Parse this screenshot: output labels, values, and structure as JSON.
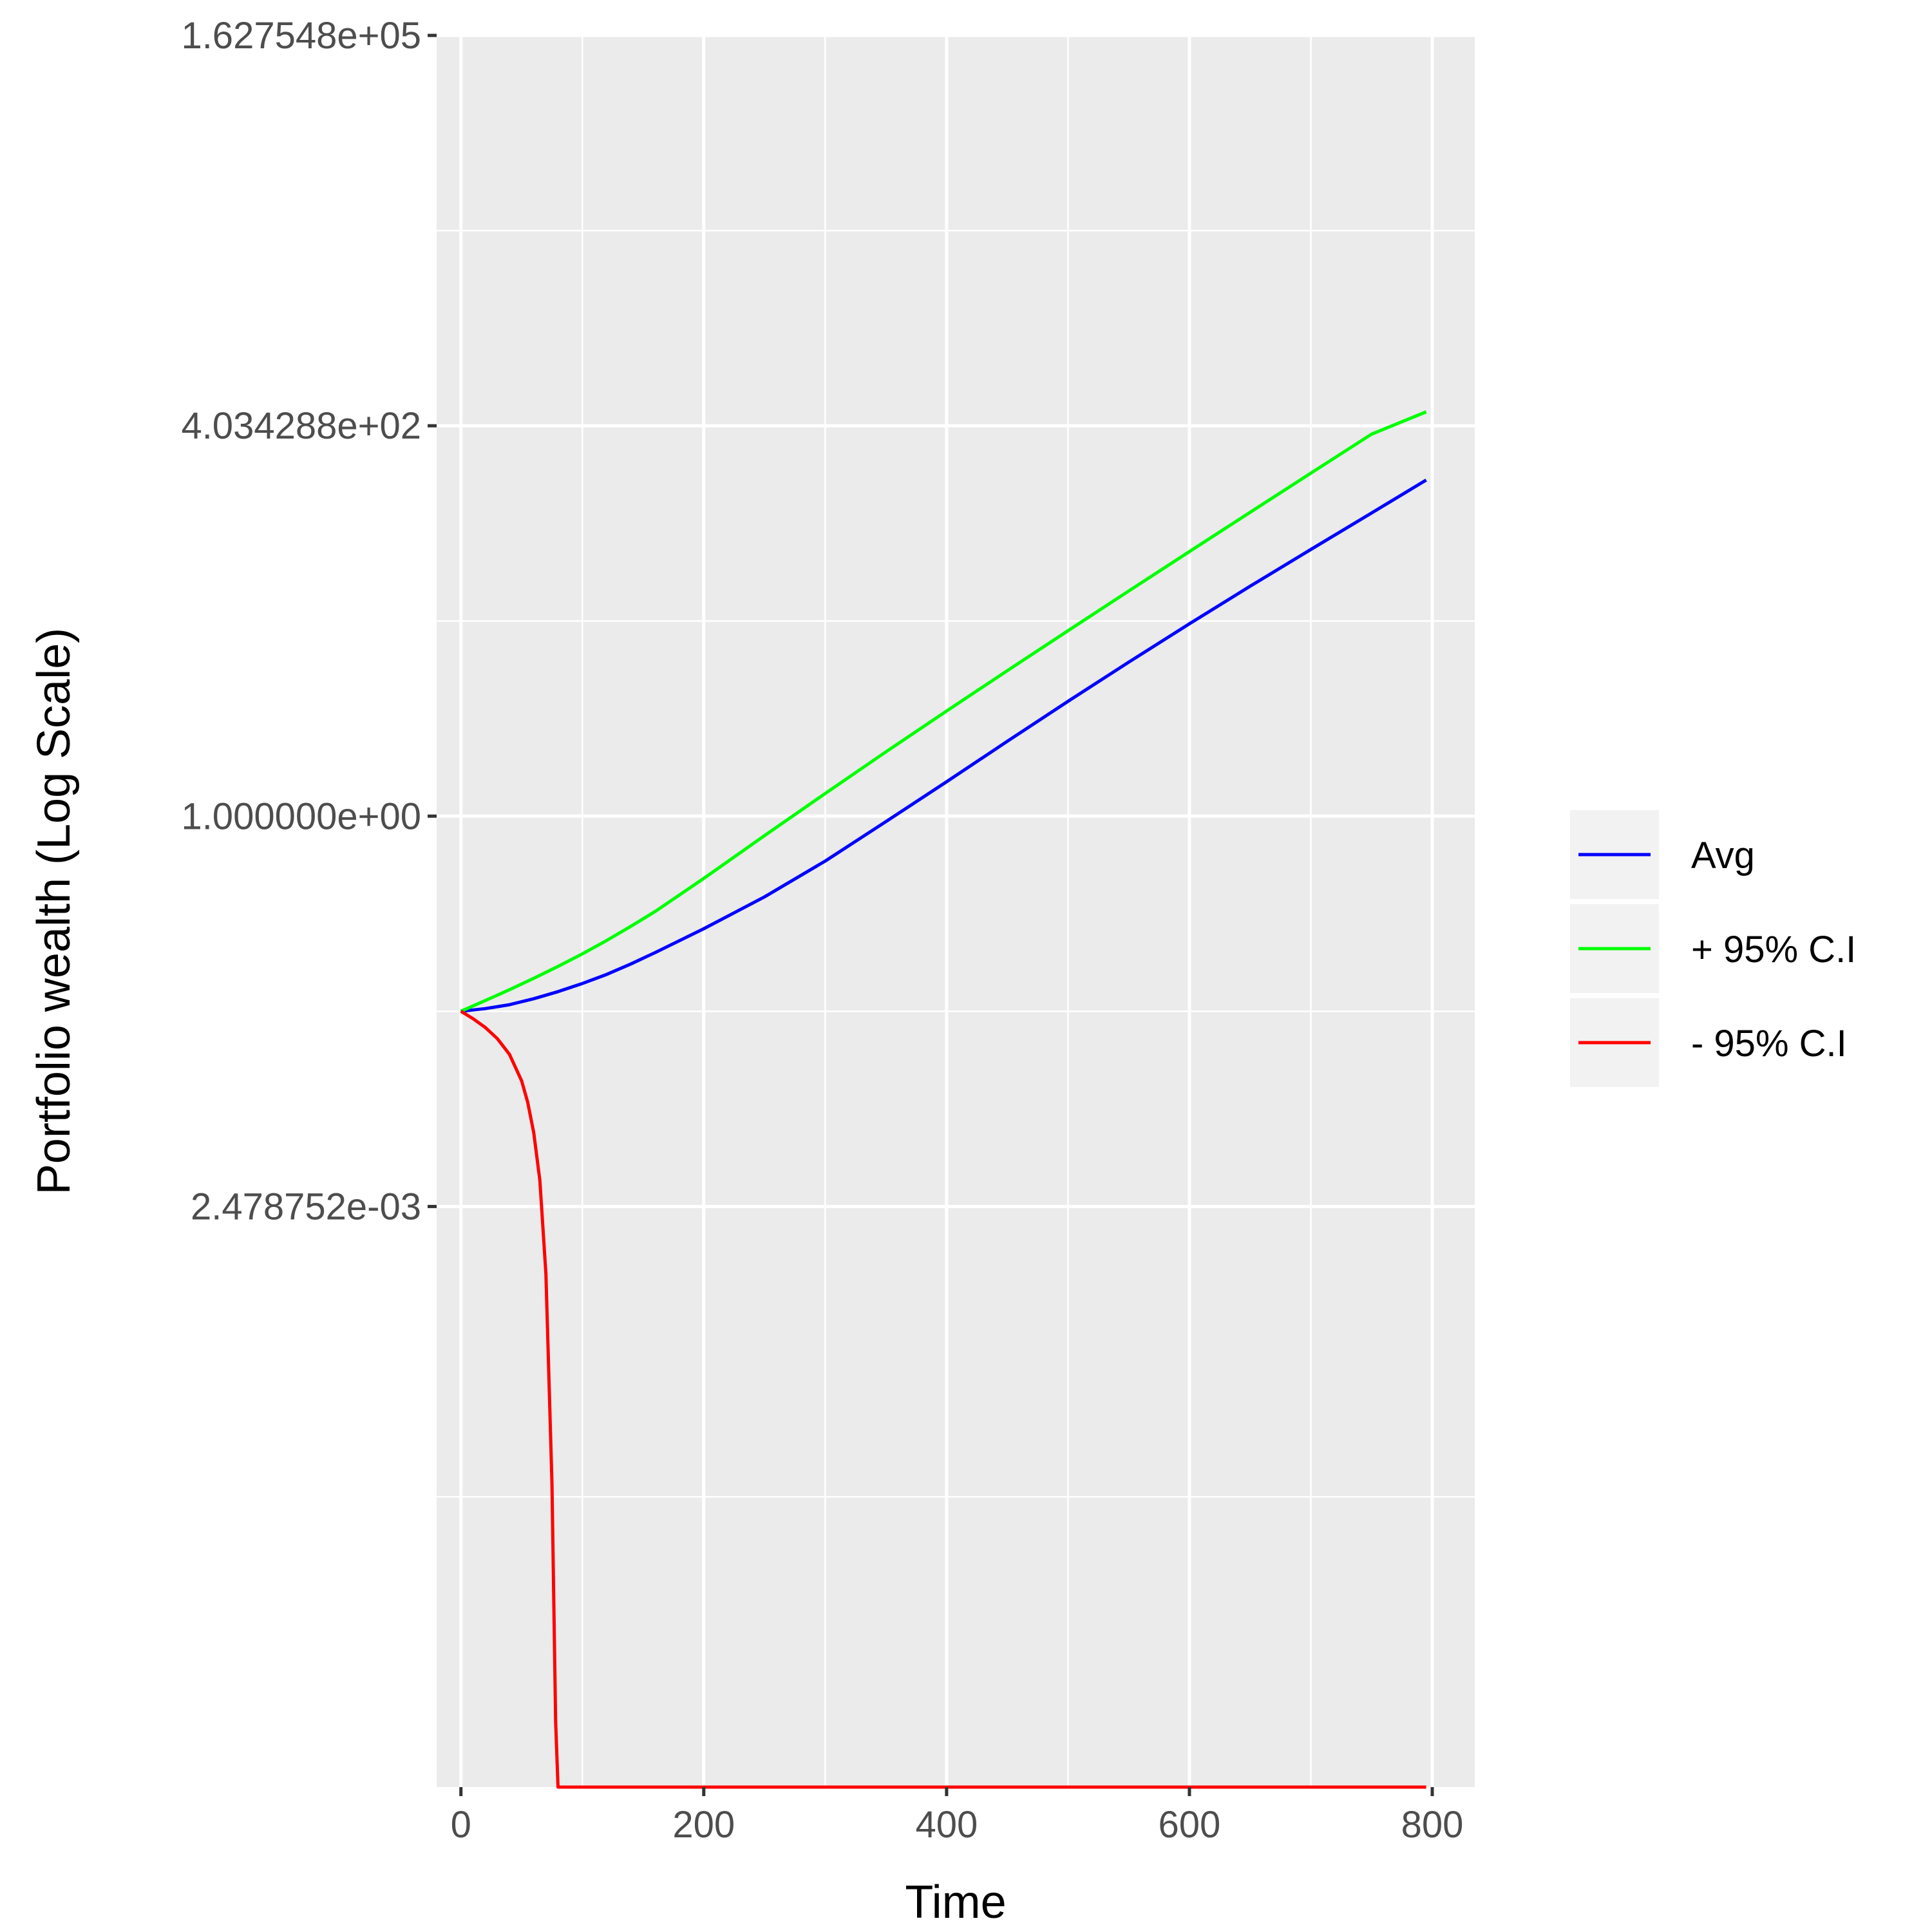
{
  "chart_data": {
    "type": "line",
    "title": "",
    "xlabel": "Time",
    "ylabel": "Portfolio wealth (Log Scale)",
    "y_scale": "log",
    "grid": true,
    "legend_position": "right",
    "xlim": [
      -20,
      835
    ],
    "ylim": [
      3.3e-07,
      162754.79
    ],
    "x_ticks": [
      0,
      200,
      400,
      600,
      800
    ],
    "x_tick_labels": [
      "0",
      "200",
      "400",
      "600",
      "800"
    ],
    "y_ticks": [
      0.002478752,
      1.0,
      403.4288,
      162754.8
    ],
    "y_tick_labels": [
      "2.478752e-03",
      "1.000000e+00",
      "4.034288e+02",
      "1.627548e+05"
    ],
    "series": [
      {
        "name": "Avg",
        "color": "#0000ff",
        "x": [
          0,
          20,
          40,
          60,
          80,
          100,
          120,
          140,
          160,
          200,
          250,
          300,
          350,
          400,
          450,
          500,
          550,
          600,
          650,
          700,
          750,
          795
        ],
        "y": [
          0.0498,
          0.0519,
          0.0551,
          0.0604,
          0.0674,
          0.0763,
          0.0878,
          0.1031,
          0.1229,
          0.1773,
          0.289,
          0.501,
          0.919,
          1.696,
          3.159,
          5.84,
          10.66,
          19.24,
          34.25,
          60.29,
          105.6,
          175.3
        ]
      },
      {
        "name": "+ 95% C.I",
        "color": "#00ff00",
        "x": [
          0,
          20,
          40,
          60,
          80,
          100,
          120,
          140,
          160,
          200,
          250,
          300,
          350,
          400,
          450,
          500,
          550,
          600,
          650,
          700,
          750,
          795
        ],
        "y": [
          0.0498,
          0.0587,
          0.0694,
          0.0827,
          0.0993,
          0.1203,
          0.1479,
          0.184,
          0.2311,
          0.3838,
          0.741,
          1.415,
          2.686,
          5.03,
          9.36,
          17.29,
          31.82,
          58.36,
          106.7,
          194.7,
          354.6,
          500.0
        ]
      }
    ],
    "series_lower": {
      "name": "- 95% C.I",
      "color": "#ff0000",
      "x": [
        0,
        10,
        20,
        30,
        40,
        50,
        55,
        60,
        65,
        70,
        75,
        78,
        80,
        82,
        100,
        200,
        400,
        600,
        795
      ],
      "y": [
        0.0498,
        0.0444,
        0.0389,
        0.0327,
        0.0257,
        0.0171,
        0.0123,
        0.0077,
        0.0037,
        0.00088,
        3.5e-05,
        9e-07,
        3.3e-07,
        3.3e-07,
        3.3e-07,
        3.3e-07,
        3.3e-07,
        3.3e-07,
        3.3e-07
      ]
    },
    "legend": [
      "Avg",
      "+ 95% C.I",
      "- 95% C.I"
    ]
  }
}
